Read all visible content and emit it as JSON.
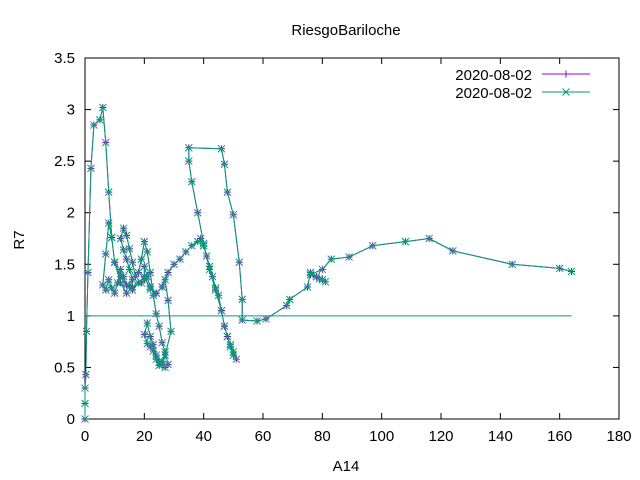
{
  "chart_data": {
    "type": "line",
    "title": "RiesgoBariloche",
    "xlabel": "A14",
    "ylabel": "R7",
    "xlim": [
      0,
      180
    ],
    "ylim": [
      0,
      3.5
    ],
    "xticks": [
      0,
      20,
      40,
      60,
      80,
      100,
      120,
      140,
      160,
      180
    ],
    "yticks": [
      0,
      0.5,
      1,
      1.5,
      2,
      2.5,
      3,
      3.5
    ],
    "xtick_labels": [
      "0",
      "20",
      "40",
      "60",
      "80",
      "100",
      "120",
      "140",
      "160",
      "180"
    ],
    "ytick_labels": [
      "0",
      "0.5",
      "1",
      "1.5",
      "2",
      "2.5",
      "3",
      "3.5"
    ],
    "grid": false,
    "legend_position": "top-right",
    "series": [
      {
        "name": "2020-08-02",
        "color": "#9400d3",
        "marker": "+",
        "x": [
          0,
          0,
          0,
          0.3,
          0.5,
          1,
          2,
          3,
          5,
          6,
          7,
          8,
          9,
          10,
          12,
          14,
          16,
          19,
          20,
          20,
          21,
          22,
          24,
          26,
          27,
          28,
          29,
          27,
          26,
          25,
          24,
          23,
          22,
          21,
          20,
          21,
          22,
          23,
          24,
          25,
          26,
          27,
          28,
          27,
          26,
          25,
          24,
          23,
          22,
          21,
          20,
          19,
          18,
          17,
          16,
          15,
          14,
          13,
          12,
          13,
          14,
          15,
          16,
          15,
          14,
          13,
          12,
          11,
          10,
          9,
          8,
          7,
          6,
          7,
          8,
          9,
          10,
          12,
          14,
          16,
          18,
          20,
          22,
          24,
          26,
          28,
          30,
          32,
          34,
          36,
          38,
          39,
          40,
          41,
          42,
          43,
          44,
          45,
          46,
          47,
          48,
          49,
          50,
          51,
          50,
          49,
          48,
          47,
          46,
          44,
          42,
          40,
          38,
          36,
          35,
          35,
          46,
          47,
          48,
          50,
          52,
          53,
          53,
          58,
          61,
          68,
          69,
          75,
          76,
          78,
          80,
          81,
          79,
          78,
          76,
          80,
          83,
          89,
          97,
          108,
          116,
          124,
          144,
          160,
          164
        ],
        "y": [
          0,
          0.15,
          0.3,
          0.43,
          0.85,
          1.42,
          2.43,
          2.85,
          2.9,
          3.02,
          2.68,
          2.2,
          1.76,
          1.52,
          1.32,
          1.22,
          1.28,
          1.32,
          1.35,
          1.48,
          1.38,
          1.28,
          1.22,
          1.28,
          1.35,
          1.15,
          0.85,
          0.62,
          0.56,
          0.52,
          0.58,
          0.66,
          0.7,
          0.73,
          0.82,
          0.93,
          0.8,
          0.72,
          0.62,
          0.55,
          0.53,
          0.5,
          0.53,
          0.65,
          0.74,
          0.9,
          1.02,
          1.2,
          1.42,
          1.62,
          1.72,
          1.55,
          1.42,
          1.38,
          1.52,
          1.65,
          1.78,
          1.85,
          1.75,
          1.64,
          1.55,
          1.45,
          1.35,
          1.28,
          1.3,
          1.38,
          1.45,
          1.32,
          1.22,
          1.27,
          1.35,
          1.25,
          1.3,
          1.6,
          1.9,
          1.76,
          1.52,
          1.38,
          1.3,
          1.25,
          1.32,
          1.38,
          1.26,
          1.22,
          1.28,
          1.42,
          1.5,
          1.55,
          1.62,
          1.68,
          1.72,
          1.75,
          1.68,
          1.58,
          1.48,
          1.38,
          1.27,
          1.2,
          1.05,
          0.9,
          0.8,
          0.7,
          0.62,
          0.58,
          0.65,
          0.72,
          0.8,
          0.9,
          1.05,
          1.25,
          1.45,
          1.7,
          2.0,
          2.3,
          2.5,
          2.63,
          2.62,
          2.47,
          2.2,
          1.98,
          1.52,
          1.16,
          0.96,
          0.95,
          0.97,
          1.1,
          1.16,
          1.28,
          1.42,
          1.38,
          1.35,
          1.33,
          1.36,
          1.38,
          1.4,
          1.45,
          1.55,
          1.57,
          1.68,
          1.72,
          1.75,
          1.63,
          1.5,
          1.46,
          1.43
        ]
      },
      {
        "name": "2020-08-02",
        "color": "#009e73",
        "marker": "x",
        "x": [
          0,
          0,
          0,
          0.3,
          0.5,
          1,
          2,
          3,
          5,
          6,
          7,
          8,
          9,
          10,
          12,
          14,
          16,
          19,
          20,
          20,
          21,
          22,
          24,
          26,
          27,
          28,
          29,
          27,
          26,
          25,
          24,
          23,
          22,
          21,
          20,
          21,
          22,
          23,
          24,
          25,
          26,
          27,
          28,
          27,
          26,
          25,
          24,
          23,
          22,
          21,
          20,
          19,
          18,
          17,
          16,
          15,
          14,
          13,
          12,
          13,
          14,
          15,
          16,
          15,
          14,
          13,
          12,
          11,
          10,
          9,
          8,
          7,
          6,
          7,
          8,
          9,
          10,
          12,
          14,
          16,
          18,
          20,
          22,
          24,
          26,
          28,
          30,
          32,
          34,
          36,
          38,
          39,
          40,
          41,
          42,
          43,
          44,
          45,
          46,
          47,
          48,
          49,
          50,
          51,
          50,
          49,
          48,
          47,
          46,
          44,
          42,
          40,
          38,
          36,
          35,
          35,
          46,
          47,
          48,
          50,
          52,
          53,
          53,
          58,
          61,
          68,
          69,
          75,
          76,
          78,
          80,
          81,
          79,
          78,
          76,
          80,
          83,
          89,
          97,
          108,
          116,
          124,
          144,
          160,
          164
        ],
        "y": [
          0,
          0.15,
          0.3,
          0.43,
          0.85,
          1.42,
          2.43,
          2.85,
          2.9,
          3.02,
          2.68,
          2.2,
          1.76,
          1.52,
          1.32,
          1.22,
          1.28,
          1.32,
          1.35,
          1.48,
          1.38,
          1.28,
          1.22,
          1.28,
          1.35,
          1.15,
          0.85,
          0.62,
          0.56,
          0.52,
          0.58,
          0.66,
          0.7,
          0.73,
          0.82,
          0.93,
          0.8,
          0.72,
          0.62,
          0.55,
          0.53,
          0.5,
          0.53,
          0.65,
          0.74,
          0.9,
          1.02,
          1.2,
          1.42,
          1.62,
          1.72,
          1.55,
          1.42,
          1.38,
          1.52,
          1.65,
          1.78,
          1.85,
          1.75,
          1.64,
          1.55,
          1.45,
          1.35,
          1.28,
          1.3,
          1.38,
          1.45,
          1.32,
          1.22,
          1.27,
          1.35,
          1.25,
          1.3,
          1.6,
          1.9,
          1.76,
          1.52,
          1.38,
          1.3,
          1.25,
          1.32,
          1.38,
          1.26,
          1.22,
          1.28,
          1.42,
          1.5,
          1.55,
          1.62,
          1.68,
          1.72,
          1.75,
          1.68,
          1.58,
          1.48,
          1.38,
          1.27,
          1.2,
          1.05,
          0.9,
          0.8,
          0.7,
          0.62,
          0.58,
          0.65,
          0.72,
          0.8,
          0.9,
          1.05,
          1.25,
          1.45,
          1.7,
          2.0,
          2.3,
          2.5,
          2.63,
          2.62,
          2.47,
          2.2,
          1.98,
          1.52,
          1.16,
          0.96,
          0.95,
          0.97,
          1.1,
          1.16,
          1.28,
          1.42,
          1.38,
          1.35,
          1.33,
          1.36,
          1.38,
          1.4,
          1.45,
          1.55,
          1.57,
          1.68,
          1.72,
          1.75,
          1.63,
          1.5,
          1.46,
          1.43
        ]
      }
    ],
    "reference_line": {
      "y": 1,
      "x_range": [
        0,
        164
      ],
      "color": "#009e73"
    }
  }
}
